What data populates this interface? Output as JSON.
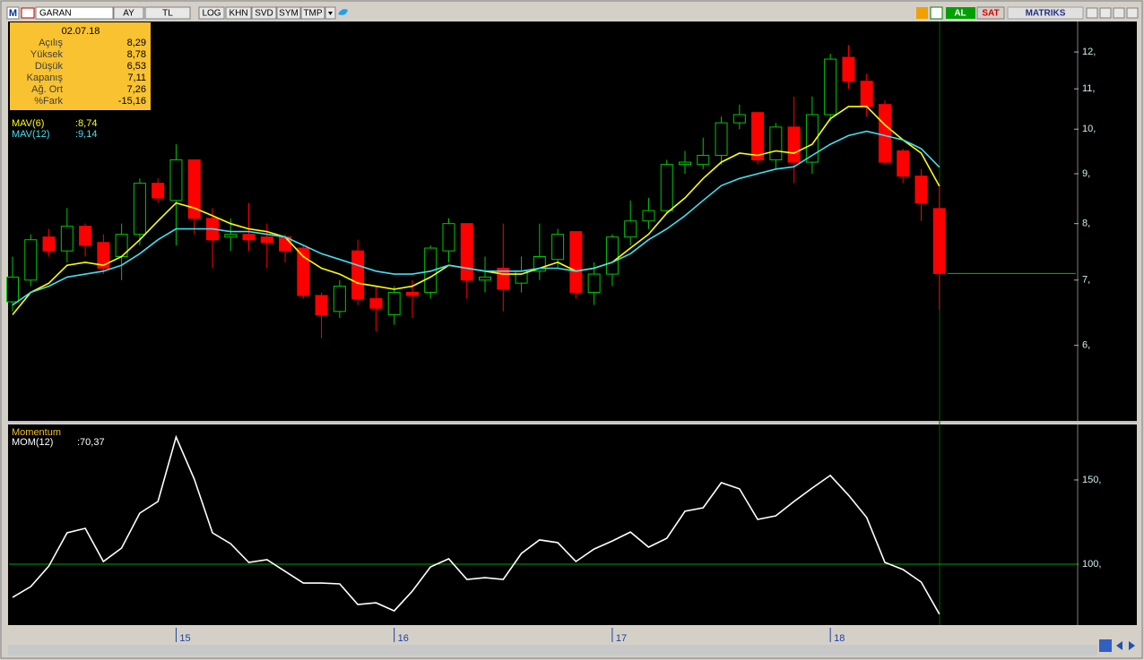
{
  "toolbar": {
    "logo": "M",
    "symbol": "GARAN",
    "buttons": [
      "AY",
      "TL",
      "LOG",
      "KHN",
      "SVD",
      "SYM",
      "TMP"
    ],
    "buy": "AL",
    "sell": "SAT",
    "brand": "MATRIKS"
  },
  "info_box": {
    "date": "02.07.18",
    "rows": [
      [
        "Açılış",
        "8,29"
      ],
      [
        "Yüksek",
        "8,78"
      ],
      [
        "Düşük",
        "6,53"
      ],
      [
        "Kapanış",
        "7,11"
      ],
      [
        "Ağ. Ort",
        "7,26"
      ],
      [
        "%Fark",
        "-15,16"
      ]
    ]
  },
  "chart_data": [
    {
      "type": "candlestick",
      "categories": [
        null,
        null,
        null,
        null,
        null,
        null,
        null,
        null,
        null,
        "15",
        null,
        null,
        null,
        null,
        null,
        null,
        null,
        null,
        null,
        null,
        null,
        "16",
        null,
        null,
        null,
        null,
        null,
        null,
        null,
        null,
        null,
        null,
        null,
        "17",
        null,
        null,
        null,
        null,
        null,
        null,
        null,
        null,
        null,
        null,
        null,
        "18",
        null,
        null,
        null,
        null,
        null,
        null
      ],
      "open": [
        6.65,
        7.0,
        7.75,
        7.5,
        7.95,
        7.65,
        7.4,
        7.8,
        8.8,
        8.45,
        9.3,
        8.1,
        7.75,
        7.8,
        7.75,
        7.75,
        7.55,
        6.75,
        6.5,
        7.5,
        6.7,
        6.45,
        6.8,
        6.8,
        7.5,
        8.0,
        7.0,
        7.2,
        6.95,
        7.15,
        7.35,
        7.85,
        6.8,
        7.1,
        7.75,
        8.05,
        8.25,
        9.2,
        9.2,
        9.4,
        10.15,
        10.4,
        9.3,
        10.05,
        9.25,
        10.35,
        11.85,
        11.2,
        10.6,
        9.5,
        8.95,
        8.29
      ],
      "high": [
        7.4,
        7.8,
        7.9,
        8.3,
        8.0,
        7.8,
        8.0,
        8.9,
        8.9,
        9.65,
        9.3,
        8.3,
        8.1,
        8.4,
        8.0,
        7.8,
        7.6,
        6.8,
        7.0,
        7.7,
        6.9,
        6.9,
        7.0,
        7.6,
        8.1,
        8.0,
        7.4,
        8.0,
        7.4,
        8.0,
        7.9,
        7.85,
        7.3,
        7.8,
        8.45,
        8.5,
        9.3,
        9.5,
        9.8,
        10.3,
        10.6,
        10.4,
        10.15,
        10.8,
        10.8,
        11.95,
        12.2,
        11.4,
        10.7,
        9.55,
        9.1,
        8.78
      ],
      "low": [
        6.5,
        6.9,
        7.4,
        7.3,
        7.4,
        7.1,
        7.0,
        7.6,
        8.4,
        7.6,
        7.8,
        7.2,
        7.5,
        7.5,
        7.2,
        7.3,
        6.7,
        6.1,
        6.4,
        6.6,
        6.2,
        6.3,
        6.4,
        6.7,
        7.3,
        6.7,
        6.8,
        6.5,
        6.8,
        7.0,
        7.2,
        6.7,
        6.6,
        6.9,
        7.6,
        7.9,
        8.2,
        9.0,
        9.1,
        9.2,
        10.0,
        9.2,
        9.1,
        8.8,
        9.0,
        10.2,
        11.0,
        10.3,
        9.2,
        8.8,
        8.05,
        6.53
      ],
      "close": [
        7.05,
        7.7,
        7.5,
        7.95,
        7.6,
        7.2,
        7.8,
        8.8,
        8.5,
        9.3,
        8.1,
        7.7,
        7.8,
        7.7,
        7.65,
        7.5,
        6.75,
        6.45,
        6.9,
        6.7,
        6.55,
        6.8,
        6.75,
        7.55,
        8.0,
        7.0,
        7.05,
        6.85,
        7.15,
        7.4,
        7.8,
        6.8,
        7.1,
        7.75,
        8.05,
        8.25,
        9.2,
        9.25,
        9.4,
        10.15,
        10.35,
        9.3,
        10.05,
        9.25,
        10.35,
        11.8,
        11.2,
        10.55,
        9.25,
        8.95,
        8.4,
        7.11
      ],
      "up_color": "#00c800",
      "down_color": "#ff0000",
      "series": [
        {
          "name": "MAV(6)",
          "color": "#ffff00",
          "last_label": ":8,74",
          "values": [
            6.45,
            6.8,
            6.95,
            7.25,
            7.3,
            7.25,
            7.4,
            7.7,
            8.05,
            8.4,
            8.3,
            8.15,
            8.0,
            7.9,
            7.85,
            7.75,
            7.4,
            7.2,
            7.1,
            6.95,
            6.9,
            6.85,
            6.9,
            7.05,
            7.25,
            7.2,
            7.15,
            7.1,
            7.1,
            7.2,
            7.3,
            7.15,
            7.2,
            7.3,
            7.55,
            7.8,
            8.2,
            8.5,
            8.9,
            9.25,
            9.45,
            9.4,
            9.5,
            9.45,
            9.65,
            10.25,
            10.55,
            10.55,
            10.1,
            9.75,
            9.45,
            8.74
          ]
        },
        {
          "name": "MAV(12)",
          "color": "#40e0f0",
          "last_label": ":9,14",
          "values": [
            6.6,
            6.8,
            6.9,
            7.05,
            7.1,
            7.15,
            7.25,
            7.45,
            7.7,
            7.9,
            7.9,
            7.9,
            7.85,
            7.85,
            7.8,
            7.75,
            7.6,
            7.45,
            7.35,
            7.25,
            7.15,
            7.1,
            7.1,
            7.15,
            7.25,
            7.2,
            7.15,
            7.15,
            7.15,
            7.2,
            7.2,
            7.15,
            7.2,
            7.3,
            7.45,
            7.7,
            7.9,
            8.15,
            8.45,
            8.75,
            8.9,
            9.0,
            9.1,
            9.15,
            9.4,
            9.65,
            9.85,
            9.95,
            9.85,
            9.75,
            9.55,
            9.14
          ]
        }
      ],
      "ylim": [
        5.04,
        12.87
      ],
      "log_scale": true,
      "yticks": [
        {
          "value": 6,
          "label": "6,"
        },
        {
          "value": 7,
          "label": "7,"
        },
        {
          "value": 8,
          "label": "8,"
        },
        {
          "value": 9,
          "label": "9,"
        },
        {
          "value": 10,
          "label": "10,"
        },
        {
          "value": 11,
          "label": "11,"
        },
        {
          "value": 12,
          "label": "12,"
        }
      ]
    },
    {
      "type": "line",
      "title": "Momentum",
      "series": [
        {
          "name": "MOM(12)",
          "color": "#ffffff",
          "last_label": ":70,37",
          "values": [
            80.3,
            86.7,
            98.9,
            118.6,
            121.3,
            101.6,
            109.6,
            130.3,
            137.2,
            175.5,
            150.5,
            118.6,
            112.2,
            101.1,
            102.7,
            95.7,
            88.8,
            88.8,
            88.3,
            76.1,
            77.1,
            72.3,
            84.0,
            98.4,
            103.2,
            91.0,
            92.0,
            91.0,
            106.4,
            114.4,
            112.8,
            101.6,
            109.0,
            113.8,
            119.1,
            110.1,
            115.4,
            131.4,
            133.5,
            148.4,
            144.7,
            126.6,
            128.7,
            137.2,
            145.2,
            152.7,
            141.0,
            127.7,
            101.1,
            96.8,
            89.4,
            70.37
          ]
        }
      ],
      "ylim": [
        64.4,
        182.4
      ],
      "yticks": [
        {
          "value": 100,
          "label": "100,"
        },
        {
          "value": 150,
          "label": "150,"
        }
      ],
      "grid_values": [
        100
      ],
      "grid_color": "#00a000"
    }
  ]
}
